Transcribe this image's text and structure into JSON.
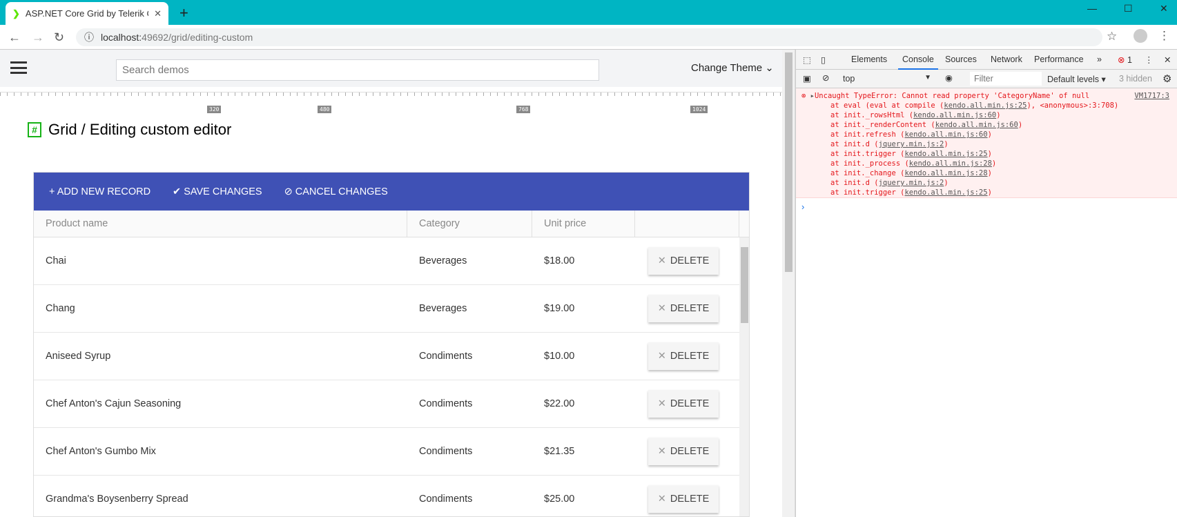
{
  "browser": {
    "tab_title": "ASP.NET Core Grid by Telerik Cus",
    "url_host": "localhost:",
    "url_rest": "49692/grid/editing-custom",
    "new_tab": "+"
  },
  "demo": {
    "search_placeholder": "Search demos",
    "change_theme": "Change Theme",
    "ruler_labels": [
      "320",
      "480",
      "768",
      "1024"
    ],
    "title": "Grid / Editing custom editor"
  },
  "grid": {
    "toolbar": {
      "add": "ADD NEW RECORD",
      "save": "SAVE CHANGES",
      "cancel": "CANCEL CHANGES"
    },
    "columns": [
      "Product name",
      "Category",
      "Unit price"
    ],
    "delete_label": "DELETE",
    "rows": [
      {
        "name": "Chai",
        "category": "Beverages",
        "price": "$18.00"
      },
      {
        "name": "Chang",
        "category": "Beverages",
        "price": "$19.00"
      },
      {
        "name": "Aniseed Syrup",
        "category": "Condiments",
        "price": "$10.00"
      },
      {
        "name": "Chef Anton's Cajun Seasoning",
        "category": "Condiments",
        "price": "$22.00"
      },
      {
        "name": "Chef Anton's Gumbo Mix",
        "category": "Condiments",
        "price": "$21.35"
      },
      {
        "name": "Grandma's Boysenberry Spread",
        "category": "Condiments",
        "price": "$25.00"
      }
    ]
  },
  "devtools": {
    "tabs": [
      "Elements",
      "Console",
      "Sources",
      "Network",
      "Performance"
    ],
    "active_tab": "Console",
    "error_count": "1",
    "context": "top",
    "filter_placeholder": "Filter",
    "levels": "Default levels",
    "hidden": "3 hidden",
    "error": {
      "message": "Uncaught TypeError: Cannot read property 'CategoryName' of null",
      "source": "VM1717:3",
      "stack": [
        [
          "at eval (eval at compile (",
          "kendo.all.min.js:25",
          "), <anonymous>:3:708)"
        ],
        [
          "at init._rowsHtml (",
          "kendo.all.min.js:60",
          ")"
        ],
        [
          "at init._renderContent (",
          "kendo.all.min.js:60",
          ")"
        ],
        [
          "at init.refresh (",
          "kendo.all.min.js:60",
          ")"
        ],
        [
          "at init.d (",
          "jquery.min.js:2",
          ")"
        ],
        [
          "at init.trigger (",
          "kendo.all.min.js:25",
          ")"
        ],
        [
          "at init._process (",
          "kendo.all.min.js:28",
          ")"
        ],
        [
          "at init._change (",
          "kendo.all.min.js:28",
          ")"
        ],
        [
          "at init.d (",
          "jquery.min.js:2",
          ")"
        ],
        [
          "at init.trigger (",
          "kendo.all.min.js:25",
          ")"
        ]
      ]
    }
  }
}
